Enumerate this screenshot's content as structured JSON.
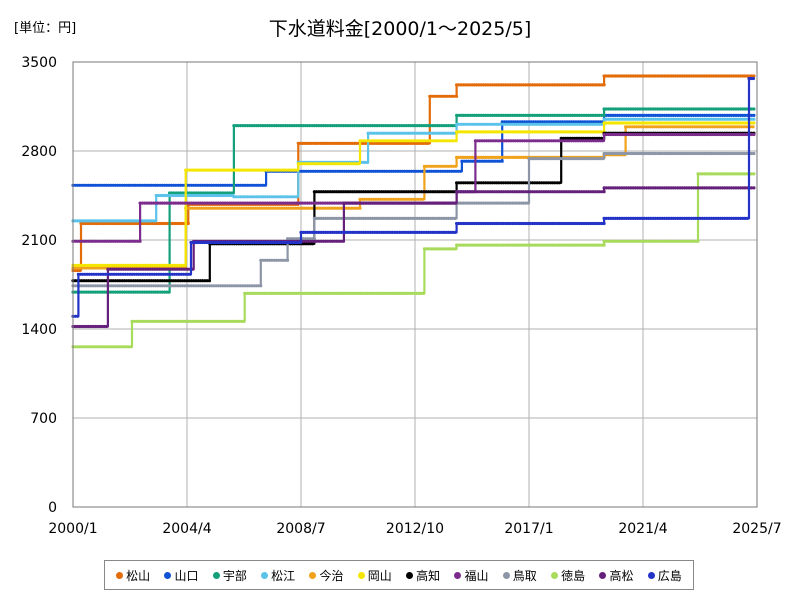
{
  "chart_data": {
    "type": "line",
    "title": "下水道料金[2000/1～2025/5]",
    "unit_label": "[単位：円]",
    "xlabel": "",
    "ylabel": "",
    "x_ticks": [
      "2000/1",
      "2004/4",
      "2008/7",
      "2012/10",
      "2017/1",
      "2021/4",
      "2025/7"
    ],
    "x_tick_values": [
      2000.0,
      2004.25,
      2008.5,
      2012.75,
      2017.0,
      2021.25,
      2025.5
    ],
    "xlim": [
      2000.0,
      2025.5
    ],
    "y_ticks": [
      "0",
      "700",
      "1400",
      "2100",
      "2800",
      "3500"
    ],
    "y_tick_values": [
      0,
      700,
      1400,
      2100,
      2800,
      3500
    ],
    "ylim": [
      0,
      3500
    ],
    "grid": true,
    "legend_position": "bottom",
    "series": [
      {
        "name": "松山",
        "color": "#E36C09",
        "points": [
          [
            2000.0,
            1860
          ],
          [
            2000.3,
            1860
          ],
          [
            2000.3,
            2230
          ],
          [
            2004.3,
            2230
          ],
          [
            2004.3,
            2380
          ],
          [
            2008.4,
            2380
          ],
          [
            2008.4,
            2860
          ],
          [
            2013.3,
            2860
          ],
          [
            2013.3,
            3230
          ],
          [
            2014.3,
            3230
          ],
          [
            2014.3,
            3320
          ],
          [
            2019.8,
            3320
          ],
          [
            2019.8,
            3390
          ],
          [
            2025.4,
            3390
          ]
        ]
      },
      {
        "name": "山口",
        "color": "#0F52D6",
        "points": [
          [
            2000.0,
            2530
          ],
          [
            2007.2,
            2530
          ],
          [
            2007.2,
            2640
          ],
          [
            2014.5,
            2640
          ],
          [
            2014.5,
            2720
          ],
          [
            2016.0,
            2720
          ],
          [
            2016.0,
            3030
          ],
          [
            2019.8,
            3030
          ],
          [
            2019.8,
            3080
          ],
          [
            2025.4,
            3080
          ]
        ]
      },
      {
        "name": "宇部",
        "color": "#13A07A",
        "points": [
          [
            2000.0,
            1690
          ],
          [
            2003.6,
            1690
          ],
          [
            2003.6,
            2470
          ],
          [
            2006.0,
            2470
          ],
          [
            2006.0,
            3000
          ],
          [
            2014.3,
            3000
          ],
          [
            2014.3,
            3080
          ],
          [
            2019.8,
            3080
          ],
          [
            2019.8,
            3130
          ],
          [
            2025.4,
            3130
          ]
        ]
      },
      {
        "name": "松江",
        "color": "#5BC2EA",
        "points": [
          [
            2000.0,
            2250
          ],
          [
            2003.1,
            2250
          ],
          [
            2003.1,
            2450
          ],
          [
            2006.0,
            2450
          ],
          [
            2006.0,
            2440
          ],
          [
            2008.4,
            2440
          ],
          [
            2008.4,
            2710
          ],
          [
            2011.0,
            2710
          ],
          [
            2011.0,
            2940
          ],
          [
            2014.3,
            2940
          ],
          [
            2014.3,
            3010
          ],
          [
            2019.8,
            3010
          ],
          [
            2019.8,
            3050
          ],
          [
            2025.4,
            3050
          ]
        ]
      },
      {
        "name": "今治",
        "color": "#F0A21A",
        "points": [
          [
            2000.0,
            1880
          ],
          [
            2004.2,
            1880
          ],
          [
            2004.2,
            2350
          ],
          [
            2010.7,
            2350
          ],
          [
            2010.7,
            2420
          ],
          [
            2013.1,
            2420
          ],
          [
            2013.1,
            2680
          ],
          [
            2014.3,
            2680
          ],
          [
            2014.3,
            2750
          ],
          [
            2019.8,
            2750
          ],
          [
            2019.8,
            2770
          ],
          [
            2020.6,
            2770
          ],
          [
            2020.6,
            2990
          ],
          [
            2025.4,
            2990
          ]
        ]
      },
      {
        "name": "岡山",
        "color": "#F5E600",
        "points": [
          [
            2000.0,
            1900
          ],
          [
            2004.2,
            1900
          ],
          [
            2004.2,
            2650
          ],
          [
            2008.4,
            2650
          ],
          [
            2008.4,
            2700
          ],
          [
            2010.7,
            2700
          ],
          [
            2010.7,
            2880
          ],
          [
            2014.3,
            2880
          ],
          [
            2014.3,
            2950
          ],
          [
            2019.8,
            2950
          ],
          [
            2019.8,
            3020
          ],
          [
            2025.4,
            3020
          ]
        ]
      },
      {
        "name": "高知",
        "color": "#000000",
        "points": [
          [
            2000.0,
            1780
          ],
          [
            2005.1,
            1780
          ],
          [
            2005.1,
            2070
          ],
          [
            2009.0,
            2070
          ],
          [
            2009.0,
            2480
          ],
          [
            2014.3,
            2480
          ],
          [
            2014.3,
            2550
          ],
          [
            2018.2,
            2550
          ],
          [
            2018.2,
            2900
          ],
          [
            2019.8,
            2900
          ],
          [
            2019.8,
            2940
          ],
          [
            2025.4,
            2940
          ]
        ]
      },
      {
        "name": "福山",
        "color": "#7B2C8C",
        "points": [
          [
            2000.0,
            2090
          ],
          [
            2002.5,
            2090
          ],
          [
            2002.5,
            2390
          ],
          [
            2008.4,
            2390
          ],
          [
            2008.4,
            2390
          ],
          [
            2014.3,
            2390
          ],
          [
            2014.3,
            2480
          ],
          [
            2015.0,
            2480
          ],
          [
            2015.0,
            2880
          ],
          [
            2019.8,
            2880
          ],
          [
            2019.8,
            2930
          ],
          [
            2025.4,
            2930
          ]
        ]
      },
      {
        "name": "鳥取",
        "color": "#8C96A6",
        "points": [
          [
            2000.0,
            1740
          ],
          [
            2007.0,
            1740
          ],
          [
            2007.0,
            1940
          ],
          [
            2008.0,
            1940
          ],
          [
            2008.0,
            2110
          ],
          [
            2009.0,
            2110
          ],
          [
            2009.0,
            2270
          ],
          [
            2014.3,
            2270
          ],
          [
            2014.3,
            2390
          ],
          [
            2017.0,
            2390
          ],
          [
            2017.0,
            2740
          ],
          [
            2019.8,
            2740
          ],
          [
            2019.8,
            2780
          ],
          [
            2025.4,
            2780
          ]
        ]
      },
      {
        "name": "徳島",
        "color": "#A8DB5C",
        "points": [
          [
            2000.0,
            1260
          ],
          [
            2002.2,
            1260
          ],
          [
            2002.2,
            1460
          ],
          [
            2006.4,
            1460
          ],
          [
            2006.4,
            1680
          ],
          [
            2013.1,
            1680
          ],
          [
            2013.1,
            2030
          ],
          [
            2014.3,
            2030
          ],
          [
            2014.3,
            2060
          ],
          [
            2019.8,
            2060
          ],
          [
            2019.8,
            2090
          ],
          [
            2023.3,
            2090
          ],
          [
            2023.3,
            2620
          ],
          [
            2025.4,
            2620
          ]
        ]
      },
      {
        "name": "高松",
        "color": "#64207A",
        "points": [
          [
            2000.0,
            1420
          ],
          [
            2001.3,
            1420
          ],
          [
            2001.3,
            1870
          ],
          [
            2004.5,
            1870
          ],
          [
            2004.5,
            2090
          ],
          [
            2010.1,
            2090
          ],
          [
            2010.1,
            2390
          ],
          [
            2014.3,
            2390
          ],
          [
            2014.3,
            2480
          ],
          [
            2019.8,
            2480
          ],
          [
            2019.8,
            2510
          ],
          [
            2025.4,
            2510
          ]
        ]
      },
      {
        "name": "広島",
        "color": "#2433C7",
        "points": [
          [
            2000.0,
            1500
          ],
          [
            2000.2,
            1500
          ],
          [
            2000.2,
            1830
          ],
          [
            2004.4,
            1830
          ],
          [
            2004.4,
            2080
          ],
          [
            2008.5,
            2080
          ],
          [
            2008.5,
            2160
          ],
          [
            2014.3,
            2160
          ],
          [
            2014.3,
            2230
          ],
          [
            2019.8,
            2230
          ],
          [
            2019.8,
            2270
          ],
          [
            2025.2,
            2270
          ],
          [
            2025.2,
            3370
          ],
          [
            2025.4,
            3370
          ]
        ]
      }
    ]
  }
}
